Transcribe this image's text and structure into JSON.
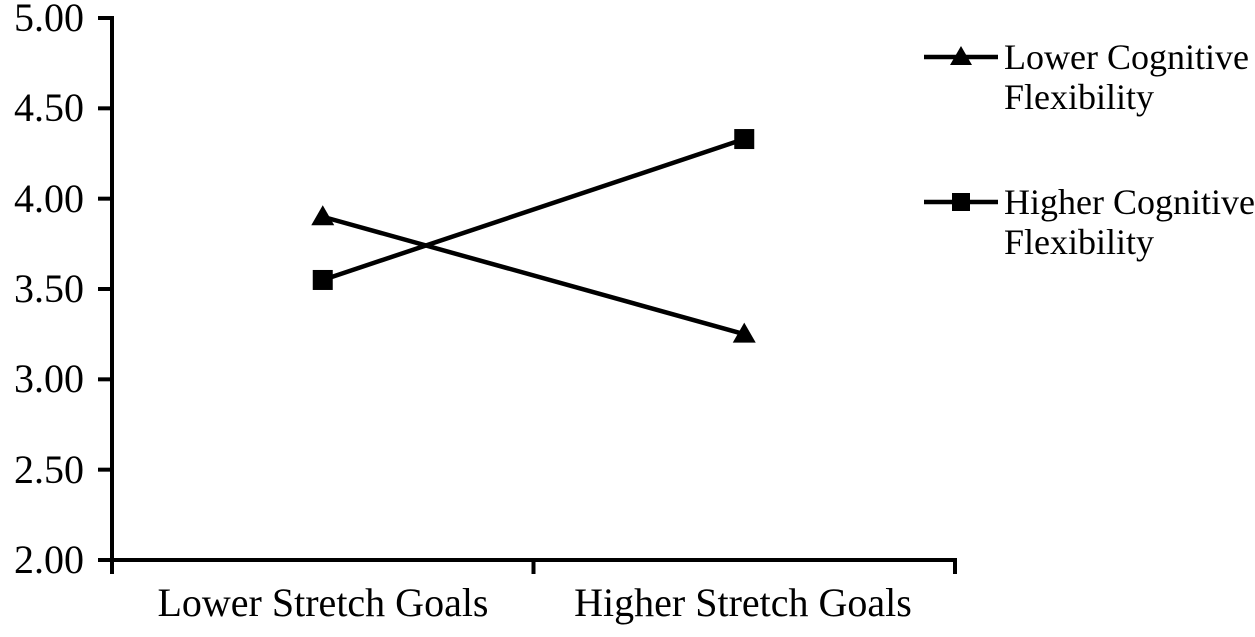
{
  "chart_data": {
    "type": "line",
    "title": "",
    "xlabel": "",
    "ylabel": "",
    "grid": false,
    "background_color": "#ffffff",
    "line_color": "#000000",
    "categories": [
      "Lower Stretch Goals",
      "Higher Stretch Goals"
    ],
    "series": [
      {
        "name": "Lower Cognitive Flexibility",
        "marker": "triangle",
        "values": [
          3.9,
          3.25
        ]
      },
      {
        "name": "Higher Cognitive Flexibility",
        "marker": "square",
        "values": [
          3.55,
          4.33
        ]
      }
    ],
    "ylim": [
      2.0,
      5.0
    ],
    "ytick_step": 0.5,
    "ytick_labels": [
      "5.00",
      "4.50",
      "4.00",
      "3.50",
      "3.00",
      "2.50",
      "2.00"
    ],
    "legend_position": "top-right"
  },
  "x_axis": {
    "labels": [
      "Lower Stretch Goals",
      "Higher Stretch Goals"
    ]
  },
  "legend": {
    "entries": [
      {
        "marker": "triangle",
        "line1": "Lower Cognitive",
        "line2": "Flexibility"
      },
      {
        "marker": "square",
        "line1": "Higher Cognitive",
        "line2": "Flexibility"
      }
    ]
  }
}
